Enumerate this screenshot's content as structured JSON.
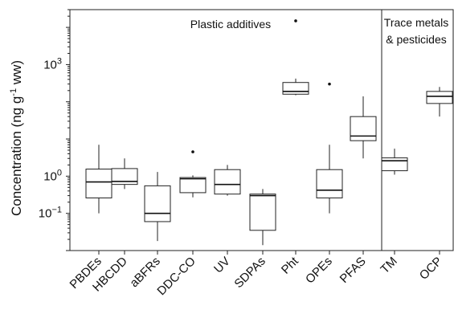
{
  "chart_data": {
    "type": "box",
    "title": "",
    "xlabel": "",
    "ylabel_main": "Concentration (ng g",
    "ylabel_sup": "-1",
    "ylabel_tail": " ww)",
    "yscale": "log",
    "ylim": [
      0.01,
      30000
    ],
    "yticks": [
      {
        "value": 0.1,
        "base": "10",
        "exp": "−1"
      },
      {
        "value": 1,
        "base": "10",
        "exp": "0"
      },
      {
        "value": 1000,
        "base": "10",
        "exp": "3"
      }
    ],
    "sections": [
      {
        "label": "Plastic additives",
        "lines": [
          "Plastic additives"
        ]
      },
      {
        "label": "Trace metals & pesticides",
        "lines": [
          "Trace metals",
          "& pesticides"
        ]
      }
    ],
    "categories": [
      "PBDEs",
      "HBCDD",
      "aBFRs",
      "DDC-CO",
      "UV",
      "SDPAs",
      "Pht",
      "OPEs",
      "PFAS",
      "TM",
      "OCP"
    ],
    "boxes": [
      {
        "category": "PBDEs",
        "section": 0,
        "whisker_low": 0.1,
        "q1": 0.26,
        "median": 0.7,
        "q3": 1.55,
        "whisker_high": 7,
        "outliers": []
      },
      {
        "category": "HBCDD",
        "section": 0,
        "whisker_low": 0.45,
        "q1": 0.6,
        "median": 0.72,
        "q3": 1.6,
        "whisker_high": 3,
        "outliers": []
      },
      {
        "category": "aBFRs",
        "section": 0,
        "whisker_low": 0.018,
        "q1": 0.06,
        "median": 0.1,
        "q3": 0.55,
        "whisker_high": 1.3,
        "outliers": []
      },
      {
        "category": "DDC-CO",
        "section": 0,
        "whisker_low": 0.27,
        "q1": 0.36,
        "median": 0.85,
        "q3": 0.92,
        "whisker_high": 1.05,
        "outliers": [
          4.5
        ]
      },
      {
        "category": "UV",
        "section": 0,
        "whisker_low": 0.3,
        "q1": 0.33,
        "median": 0.6,
        "q3": 1.5,
        "whisker_high": 2,
        "outliers": []
      },
      {
        "category": "SDPAs",
        "section": 0,
        "whisker_low": 0.014,
        "q1": 0.035,
        "median": 0.3,
        "q3": 0.33,
        "whisker_high": 0.45,
        "outliers": []
      },
      {
        "category": "Pht",
        "section": 0,
        "whisker_low": 150,
        "q1": 160,
        "median": 190,
        "q3": 330,
        "whisker_high": 420,
        "outliers": [
          15000
        ]
      },
      {
        "category": "OPEs",
        "section": 0,
        "whisker_low": 0.1,
        "q1": 0.26,
        "median": 0.42,
        "q3": 1.5,
        "whisker_high": 7,
        "outliers": [
          300
        ]
      },
      {
        "category": "PFAS",
        "section": 0,
        "whisker_low": 3,
        "q1": 9,
        "median": 12,
        "q3": 40,
        "whisker_high": 140,
        "outliers": []
      },
      {
        "category": "TM",
        "section": 1,
        "whisker_low": 1.1,
        "q1": 1.4,
        "median": 2.6,
        "q3": 3.1,
        "whisker_high": 5.5,
        "outliers": []
      },
      {
        "category": "OCP",
        "section": 1,
        "whisker_low": 40,
        "q1": 90,
        "median": 140,
        "q3": 190,
        "whisker_high": 250,
        "outliers": []
      }
    ]
  }
}
